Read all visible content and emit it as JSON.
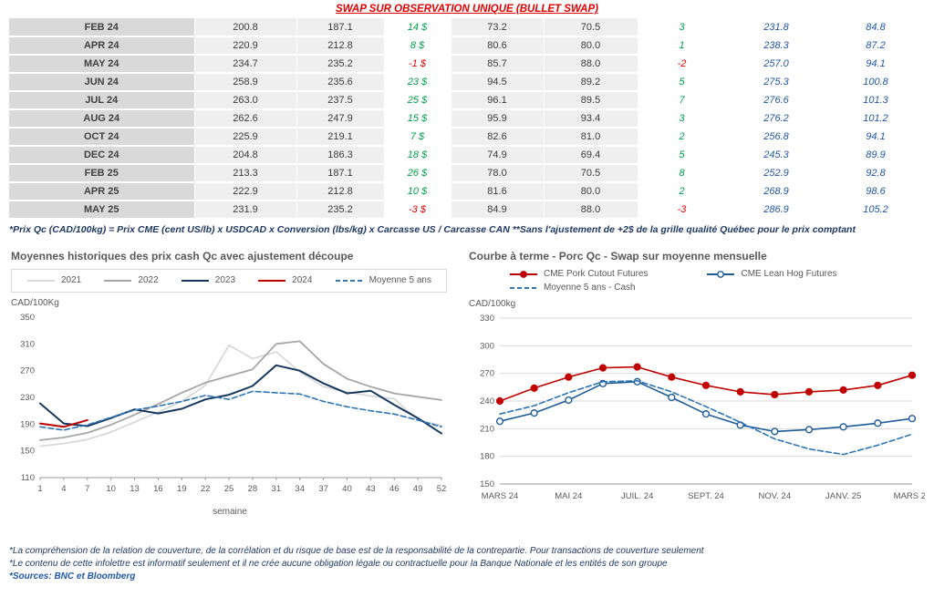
{
  "header": {
    "title": "SWAP SUR OBSERVATION UNIQUE (BULLET SWAP)"
  },
  "colors": {
    "title_red": "#e30000",
    "positive_green": "#00a14b",
    "negative_red": "#e30000",
    "forward_blue": "#2157a7",
    "footnote_navy": "#1f3864",
    "chart_text_gray": "#595959",
    "month_col_bg": "#d9d9d9",
    "value_col_bg": "#efefef"
  },
  "table": {
    "rows": [
      [
        "FEB 24",
        "200.8",
        "187.1",
        "14 $",
        "73.2",
        "70.5",
        "3",
        "231.8",
        "84.8"
      ],
      [
        "APR 24",
        "220.9",
        "212.8",
        "8 $",
        "80.6",
        "80.0",
        "1",
        "238.3",
        "87.2"
      ],
      [
        "MAY 24",
        "234.7",
        "235.2",
        "-1 $",
        "85.7",
        "88.0",
        "-2",
        "257.0",
        "94.1"
      ],
      [
        "JUN 24",
        "258.9",
        "235.6",
        "23 $",
        "94.5",
        "89.2",
        "5",
        "275.3",
        "100.8"
      ],
      [
        "JUL 24",
        "263.0",
        "237.5",
        "25 $",
        "96.1",
        "89.5",
        "7",
        "276.6",
        "101.3"
      ],
      [
        "AUG 24",
        "262.6",
        "247.9",
        "15 $",
        "95.9",
        "93.4",
        "3",
        "276.2",
        "101.2"
      ],
      [
        "OCT 24",
        "225.9",
        "219.1",
        "7 $",
        "82.6",
        "81.0",
        "2",
        "256.8",
        "94.1"
      ],
      [
        "DEC 24",
        "204.8",
        "186.3",
        "18 $",
        "74.9",
        "69.4",
        "5",
        "245.3",
        "89.9"
      ],
      [
        "FEB 25",
        "213.3",
        "187.1",
        "26 $",
        "78.0",
        "70.5",
        "8",
        "252.9",
        "92.8"
      ],
      [
        "APR 25",
        "222.9",
        "212.8",
        "10 $",
        "81.6",
        "80.0",
        "2",
        "268.9",
        "98.6"
      ],
      [
        "MAY 25",
        "231.9",
        "235.2",
        "-3 $",
        "84.9",
        "88.0",
        "-3",
        "286.9",
        "105.2"
      ]
    ],
    "footnote": "*Prix Qc (CAD/100kg) = Prix CME (cent US/lb) x USDCAD x Conversion (lbs/kg) x Carcasse US / Carcasse CAN **Sans l'ajustement de +2$ de la grille qualité Québec pour le prix comptant"
  },
  "chart_data": [
    {
      "type": "line",
      "title": "Moyennes historiques des prix cash Qc avec ajustement découpe",
      "ylabel": "CAD/100Kg",
      "xlabel": "semaine",
      "ylim": [
        110,
        350
      ],
      "ytick_step": 40,
      "grid": false,
      "legend_position": "top",
      "x": [
        1,
        4,
        7,
        10,
        13,
        16,
        19,
        22,
        25,
        28,
        31,
        34,
        37,
        40,
        43,
        46,
        49,
        52
      ],
      "series": [
        {
          "name": "2021",
          "color": "#d9d9d9",
          "style": "solid",
          "width": 1.8,
          "values": [
            157,
            161,
            167,
            178,
            193,
            208,
            224,
            248,
            308,
            288,
            298,
            268,
            246,
            238,
            232,
            228,
            196,
            188
          ]
        },
        {
          "name": "2022",
          "color": "#a6a6a6",
          "style": "solid",
          "width": 1.8,
          "values": [
            166,
            170,
            177,
            189,
            204,
            220,
            237,
            252,
            262,
            272,
            310,
            314,
            280,
            258,
            246,
            236,
            231,
            226
          ]
        },
        {
          "name": "2023",
          "color": "#17375e",
          "style": "solid",
          "width": 2,
          "values": [
            221,
            191,
            187,
            199,
            212,
            206,
            213,
            227,
            234,
            247,
            278,
            270,
            251,
            236,
            240,
            219,
            199,
            176
          ]
        },
        {
          "name": "2024",
          "color": "#c00000",
          "style": "solid",
          "width": 2,
          "x": [
            1,
            4,
            7
          ],
          "values": [
            191,
            186,
            196
          ]
        },
        {
          "name": "Moyenne 5 ans",
          "color": "#2e75b6",
          "style": "dashed",
          "width": 1.6,
          "values": [
            186,
            181,
            189,
            200,
            211,
            217,
            224,
            233,
            227,
            239,
            237,
            235,
            224,
            216,
            210,
            205,
            196,
            186
          ]
        }
      ]
    },
    {
      "type": "line",
      "title": "Courbe à terme - Porc Qc - Swap sur moyenne mensuelle",
      "ylabel": "CAD/100kg",
      "ylim": [
        150,
        330
      ],
      "ytick_step": 30,
      "grid": true,
      "legend_position": "top",
      "points": 13,
      "categories": [
        "MARS 24",
        "MAI 24",
        "JUIL. 24",
        "SEPT. 24",
        "NOV. 24",
        "JANV. 25",
        "MARS 25"
      ],
      "category_indices": [
        0,
        2,
        4,
        6,
        8,
        10,
        12
      ],
      "series": [
        {
          "name": "CME Pork Cutout Futures",
          "color": "#c00000",
          "style": "solid",
          "width": 1.6,
          "marker": "filled",
          "values": [
            240,
            254,
            266,
            276,
            277,
            266,
            257,
            250,
            247,
            250,
            252,
            257,
            268
          ]
        },
        {
          "name": "CME Lean Hog Futures",
          "color": "#1f5c99",
          "style": "solid",
          "width": 1.6,
          "marker": "open",
          "values": [
            218,
            227,
            241,
            259,
            261,
            244,
            226,
            214,
            207,
            209,
            212,
            216,
            221
          ]
        },
        {
          "name": "Moyenne 5 ans - Cash",
          "color": "#2e75b6",
          "style": "dashed",
          "width": 1.6,
          "values": [
            226,
            235,
            249,
            261,
            262,
            250,
            234,
            217,
            199,
            188,
            182,
            192,
            204
          ]
        }
      ]
    }
  ],
  "footnotes": [
    "*La compréhension de la relation de couverture, de la corrélation et du risque de base est de la responsabilité de la contrepartie. Pour transactions de couverture seulement",
    "*Le contenu de cette infolettre est informatif seulement et il ne crée aucune obligation légale ou contractuelle pour la Banque Nationale et les entités de son groupe",
    "*Sources: BNC et Bloomberg"
  ]
}
